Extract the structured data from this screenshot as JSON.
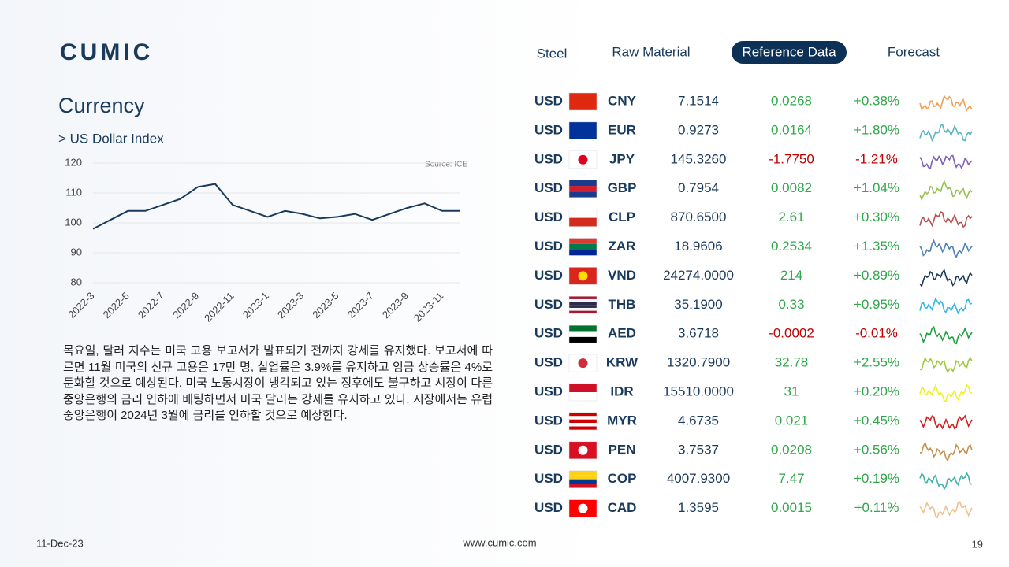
{
  "header": {
    "logo": "CUMIC",
    "tabs": [
      "Steel",
      "Raw Material",
      "Reference Data",
      "Forecast"
    ],
    "active_tab": 2
  },
  "title": "Currency",
  "subtitle": "> US Dollar Index",
  "chart_data": {
    "type": "line",
    "source": "Source: ICE",
    "categories": [
      "2022-3",
      null,
      "2022-5",
      null,
      "2022-7",
      null,
      "2022-9",
      null,
      "2022-11",
      null,
      "2023-1",
      null,
      "2023-3",
      null,
      "2023-5",
      null,
      "2023-7",
      null,
      "2023-9",
      null,
      "2023-11",
      null
    ],
    "values": [
      98,
      101,
      104,
      104,
      106,
      108,
      112,
      113,
      106,
      104,
      102,
      104,
      103,
      101.5,
      102,
      103,
      101,
      103,
      105,
      106.5,
      104,
      104
    ],
    "color": "#1a3a5c",
    "ylim": [
      80,
      120
    ],
    "yticks": [
      80,
      90,
      100,
      110,
      120
    ],
    "grid": true
  },
  "paragraph": "목요일, 달러 지수는 미국 고용 보고서가 발표되기 전까지 강세를 유지했다. 보고서에 따르면 11월 미국의 신규 고용은 17만 명, 실업률은 3.9%를 유지하고 임금 상승률은 4%로 둔화할 것으로 예상된다. 미국 노동시장이 냉각되고 있는 징후에도 불구하고 시장이 다른 중앙은행의 금리 인하에 베팅하면서 미국 달러는 강세를 유지하고 있다. 시장에서는 유럽중앙은행이 2024년 3월에 금리를 인하할 것으로 예상한다.",
  "table": {
    "rows": [
      {
        "base": "USD",
        "code": "CNY",
        "rate": "7.1514",
        "change": "0.0268",
        "pct": "+0.38%",
        "change_color": "#2ea84a",
        "spark_color": "#f0a050",
        "flag": [
          "#de2910"
        ]
      },
      {
        "base": "USD",
        "code": "EUR",
        "rate": "0.9273",
        "change": "0.0164",
        "pct": "+1.80%",
        "change_color": "#2ea84a",
        "spark_color": "#5ab4c8",
        "flag": [
          "#003399"
        ]
      },
      {
        "base": "USD",
        "code": "JPY",
        "rate": "145.3260",
        "change": "-1.7750",
        "pct": "-1.21%",
        "change_color": "#c00000",
        "spark_color": "#8060b0",
        "flag": [
          "#ffffff"
        ],
        "dot": "#e00020"
      },
      {
        "base": "USD",
        "code": "GBP",
        "rate": "0.7954",
        "change": "0.0082",
        "pct": "+1.04%",
        "change_color": "#2ea84a",
        "spark_color": "#98c050",
        "flag": [
          "#1a3a8c",
          "#cc2030",
          "#1a3a8c"
        ]
      },
      {
        "base": "USD",
        "code": "CLP",
        "rate": "870.6500",
        "change": "2.61",
        "pct": "+0.30%",
        "change_color": "#2ea84a",
        "spark_color": "#b85050",
        "flag": [
          "#ffffff",
          "#d52b1e"
        ]
      },
      {
        "base": "USD",
        "code": "ZAR",
        "rate": "18.9606",
        "change": "0.2534",
        "pct": "+1.35%",
        "change_color": "#2ea84a",
        "spark_color": "#5080b8",
        "flag": [
          "#de3831",
          "#007a4d",
          "#002395"
        ]
      },
      {
        "base": "USD",
        "code": "VND",
        "rate": "24274.0000",
        "change": "214",
        "pct": "+0.89%",
        "change_color": "#2ea84a",
        "spark_color": "#1a3a5c",
        "flag": [
          "#da251d"
        ],
        "dot": "#ffdd00"
      },
      {
        "base": "USD",
        "code": "THB",
        "rate": "35.1900",
        "change": "0.33",
        "pct": "+0.95%",
        "change_color": "#2ea84a",
        "spark_color": "#30b8e8",
        "flag": [
          "#a51931",
          "#f4f5f8",
          "#2d2a4a",
          "#2d2a4a",
          "#f4f5f8",
          "#a51931"
        ]
      },
      {
        "base": "USD",
        "code": "AED",
        "rate": "3.6718",
        "change": "-0.0002",
        "pct": "-0.01%",
        "change_color": "#c00000",
        "spark_color": "#20a040",
        "flag": [
          "#00732f",
          "#ffffff",
          "#000000"
        ]
      },
      {
        "base": "USD",
        "code": "KRW",
        "rate": "1320.7900",
        "change": "32.78",
        "pct": "+2.55%",
        "change_color": "#2ea84a",
        "spark_color": "#a0c840",
        "flag": [
          "#ffffff"
        ],
        "dot": "#cd2e3a"
      },
      {
        "base": "USD",
        "code": "IDR",
        "rate": "15510.0000",
        "change": "31",
        "pct": "+0.20%",
        "change_color": "#2ea84a",
        "spark_color": "#f0f020",
        "flag": [
          "#ce1126",
          "#ffffff"
        ]
      },
      {
        "base": "USD",
        "code": "MYR",
        "rate": "4.6735",
        "change": "0.021",
        "pct": "+0.45%",
        "change_color": "#2ea84a",
        "spark_color": "#d02020",
        "flag": [
          "#cc0001",
          "#ffffff",
          "#cc0001",
          "#ffffff",
          "#cc0001"
        ]
      },
      {
        "base": "USD",
        "code": "PEN",
        "rate": "3.7537",
        "change": "0.0208",
        "pct": "+0.56%",
        "change_color": "#2ea84a",
        "spark_color": "#c09050",
        "flag": [
          "#d91023"
        ],
        "dot": "#ffffff"
      },
      {
        "base": "USD",
        "code": "COP",
        "rate": "4007.9300",
        "change": "7.47",
        "pct": "+0.19%",
        "change_color": "#2ea84a",
        "spark_color": "#40b0a8",
        "flag": [
          "#fcd116",
          "#fcd116",
          "#003893",
          "#ce1126"
        ]
      },
      {
        "base": "USD",
        "code": "CAD",
        "rate": "1.3595",
        "change": "0.0015",
        "pct": "+0.11%",
        "change_color": "#2ea84a",
        "spark_color": "#f0c090",
        "flag": [
          "#ff0000"
        ],
        "dot": "#ffffff"
      }
    ]
  },
  "footer": {
    "date": "11-Dec-23",
    "url": "www.cumic.com",
    "page": "19"
  }
}
